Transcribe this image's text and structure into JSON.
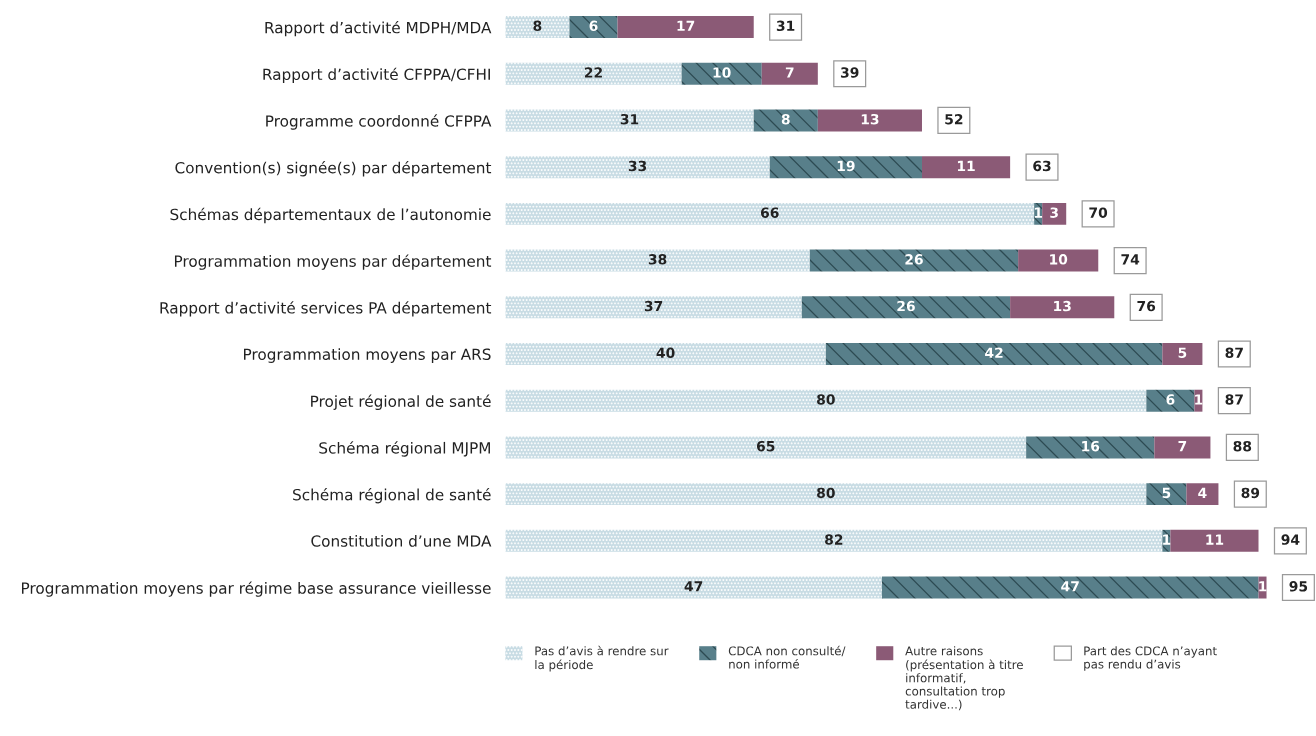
{
  "chart_data": {
    "type": "bar",
    "orientation": "horizontal",
    "stacked": true,
    "categories": [
      "Rapport d’activité MDPH/MDA",
      "Rapport d’activité CFPPA/CFHI",
      "Programme coordonné CFPPA",
      "Convention(s) signée(s) par département",
      "Schémas départementaux de l’autonomie",
      "Programmation moyens par département",
      "Rapport d’activité services PA département",
      "Programmation moyens par ARS",
      "Projet régional de santé",
      "Schéma régional MJPM",
      "Schéma régional de santé",
      "Constitution d’une MDA",
      "Programmation moyens par régime base assurance vieillesse"
    ],
    "series": [
      {
        "name": "Pas d’avis à rendre sur\nla période",
        "color": "#c8dce4",
        "values": [
          8,
          22,
          31,
          33,
          66,
          38,
          37,
          40,
          80,
          65,
          80,
          82,
          47
        ]
      },
      {
        "name": "CDCA non consulté/\nnon informé",
        "color": "#587f8a",
        "values": [
          6,
          10,
          8,
          19,
          1,
          26,
          26,
          42,
          6,
          16,
          5,
          1,
          47
        ]
      },
      {
        "name": "Autre raisons\n(présentation à titre\ninformatif,\nconsultation trop\ntardive...)",
        "color": "#8b5a76",
        "values": [
          17,
          7,
          13,
          11,
          3,
          10,
          13,
          5,
          1,
          7,
          4,
          11,
          1
        ]
      }
    ],
    "totals": [
      "31",
      "39",
      "52",
      "63",
      "70",
      "74",
      "76",
      "87",
      "87",
      "88",
      "89",
      "94",
      "95"
    ],
    "annotations": [
      "Part des CDCA n’ayant\npas rendu d’avis"
    ],
    "data_labels": true,
    "legend": "bottom",
    "tick_labels": "y"
  }
}
